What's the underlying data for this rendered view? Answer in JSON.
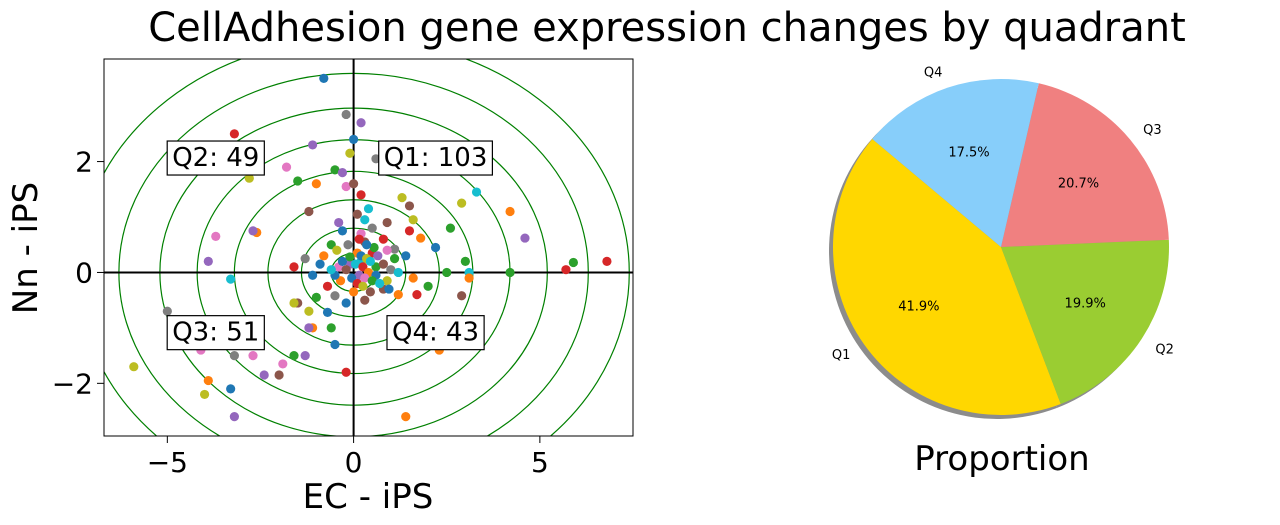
{
  "title": "CellAdhesion gene expression changes by quadrant",
  "chart_data": [
    {
      "type": "scatter",
      "xlabel": "EC - iPS",
      "ylabel": "Nn - iPS",
      "xlim": [
        -6.7,
        7.5
      ],
      "ylim": [
        -2.95,
        3.85
      ],
      "xticks": [
        -5,
        0,
        5
      ],
      "xtick_labels": [
        "−5",
        "0",
        "5"
      ],
      "yticks": [
        -2,
        0,
        2
      ],
      "ytick_labels": [
        "−2",
        "0",
        "2"
      ],
      "contour_color": "#008000",
      "contour_radii": [
        0.6,
        1.4,
        2.3,
        3.2,
        4.2,
        5.2,
        6.3,
        7.4
      ],
      "ellipse_y_scale": 0.57,
      "quadrant_labels": [
        {
          "id": "q2",
          "text": "Q2: 49",
          "x": -3.7,
          "y": 2.1
        },
        {
          "id": "q1",
          "text": "Q1: 103",
          "x": 2.2,
          "y": 2.1
        },
        {
          "id": "q3",
          "text": "Q3: 51",
          "x": -3.7,
          "y": -1.05
        },
        {
          "id": "q4",
          "text": "Q4: 43",
          "x": 2.2,
          "y": -1.05
        }
      ],
      "palette": [
        "#1f77b4",
        "#ff7f0e",
        "#2ca02c",
        "#d62728",
        "#9467bd",
        "#8c564b",
        "#e377c2",
        "#7f7f7f",
        "#bcbd22",
        "#17becf"
      ],
      "points": [
        [
          -0.8,
          3.5,
          0
        ],
        [
          -0.2,
          2.85,
          7
        ],
        [
          0.2,
          2.7,
          4
        ],
        [
          -3.2,
          2.5,
          3
        ],
        [
          0.0,
          2.4,
          0
        ],
        [
          -1.1,
          2.3,
          4
        ],
        [
          -0.1,
          2.15,
          8
        ],
        [
          0.6,
          2.05,
          7
        ],
        [
          -1.8,
          1.9,
          6
        ],
        [
          -0.5,
          1.85,
          2
        ],
        [
          -0.3,
          1.8,
          4
        ],
        [
          -2.8,
          1.7,
          8
        ],
        [
          -1.5,
          1.65,
          2
        ],
        [
          -1.0,
          1.6,
          1
        ],
        [
          -0.2,
          1.55,
          6
        ],
        [
          0.0,
          1.6,
          5
        ],
        [
          3.3,
          1.45,
          9
        ],
        [
          0.2,
          1.4,
          3
        ],
        [
          1.3,
          1.35,
          8
        ],
        [
          2.9,
          1.25,
          8
        ],
        [
          1.5,
          1.2,
          5
        ],
        [
          0.4,
          1.15,
          9
        ],
        [
          -1.2,
          1.1,
          5
        ],
        [
          0.1,
          1.05,
          5
        ],
        [
          4.2,
          1.1,
          1
        ],
        [
          1.6,
          0.95,
          8
        ],
        [
          0.9,
          0.9,
          5
        ],
        [
          0.3,
          0.95,
          9
        ],
        [
          -0.4,
          0.9,
          4
        ],
        [
          2.6,
          0.8,
          2
        ],
        [
          -0.3,
          0.75,
          0
        ],
        [
          1.5,
          0.75,
          3
        ],
        [
          -2.6,
          0.72,
          1
        ],
        [
          -2.7,
          0.75,
          4
        ],
        [
          0.5,
          0.8,
          7
        ],
        [
          0.2,
          0.7,
          6
        ],
        [
          -3.7,
          0.65,
          6
        ],
        [
          4.6,
          0.62,
          4
        ],
        [
          1.8,
          0.62,
          1
        ],
        [
          0.8,
          0.6,
          3
        ],
        [
          0.3,
          0.55,
          5
        ],
        [
          -0.6,
          0.5,
          2
        ],
        [
          2.2,
          0.45,
          0
        ],
        [
          1.1,
          0.42,
          7
        ],
        [
          0.5,
          0.35,
          3
        ],
        [
          -0.8,
          0.3,
          1
        ],
        [
          1.4,
          0.3,
          0
        ],
        [
          0.2,
          0.2,
          9
        ],
        [
          -0.1,
          0.15,
          4
        ],
        [
          0.6,
          0.1,
          2
        ],
        [
          -3.9,
          0.2,
          4
        ],
        [
          6.8,
          0.2,
          3
        ],
        [
          5.9,
          0.18,
          2
        ],
        [
          3.0,
          0.2,
          2
        ],
        [
          -0.4,
          0.1,
          6
        ],
        [
          1.0,
          0.05,
          7
        ],
        [
          5.7,
          0.05,
          3
        ],
        [
          4.2,
          0.0,
          2
        ],
        [
          3.1,
          0.0,
          9
        ],
        [
          2.5,
          0.0,
          2
        ],
        [
          -1.3,
          0.25,
          7
        ],
        [
          -1.6,
          0.1,
          3
        ],
        [
          -1.1,
          -0.05,
          0
        ],
        [
          0.9,
          -0.15,
          8
        ],
        [
          1.6,
          -0.1,
          1
        ],
        [
          3.1,
          -0.1,
          1
        ],
        [
          -3.3,
          -0.12,
          9
        ],
        [
          2.0,
          -0.25,
          2
        ],
        [
          0.8,
          -0.3,
          5
        ],
        [
          1.7,
          -0.4,
          3
        ],
        [
          2.9,
          -0.42,
          5
        ],
        [
          -0.5,
          -0.42,
          7
        ],
        [
          -1.0,
          -0.45,
          2
        ],
        [
          1.2,
          -0.4,
          1
        ],
        [
          -1.5,
          -0.55,
          5
        ],
        [
          -1.6,
          -0.55,
          8
        ],
        [
          -0.2,
          -0.55,
          0
        ],
        [
          0.3,
          -0.5,
          5
        ],
        [
          -5.0,
          -0.7,
          7
        ],
        [
          -0.7,
          -0.72,
          0
        ],
        [
          -1.2,
          -0.7,
          8
        ],
        [
          -1.1,
          -1.0,
          1
        ],
        [
          -1.2,
          -1.0,
          4
        ],
        [
          -0.6,
          -1.0,
          2
        ],
        [
          1.5,
          -0.95,
          3
        ],
        [
          2.5,
          -0.9,
          1
        ],
        [
          -0.5,
          -1.3,
          0
        ],
        [
          -1.6,
          -1.5,
          2
        ],
        [
          -1.3,
          -1.5,
          4
        ],
        [
          -3.2,
          -1.5,
          7
        ],
        [
          -2.7,
          -1.5,
          6
        ],
        [
          -4.1,
          -1.4,
          6
        ],
        [
          2.3,
          -1.4,
          1
        ],
        [
          -5.9,
          -1.7,
          8
        ],
        [
          -1.9,
          -1.65,
          6
        ],
        [
          -0.2,
          -1.8,
          3
        ],
        [
          -2.4,
          -1.85,
          4
        ],
        [
          -2.0,
          -1.85,
          5
        ],
        [
          -3.9,
          -1.95,
          1
        ],
        [
          -3.3,
          -2.1,
          0
        ],
        [
          -4.0,
          -2.2,
          8
        ],
        [
          -3.2,
          -2.6,
          4
        ],
        [
          1.4,
          -2.6,
          1
        ],
        [
          0.1,
          0.35,
          1
        ],
        [
          0.2,
          0.3,
          0
        ],
        [
          0.35,
          0.25,
          8
        ],
        [
          0.45,
          0.2,
          9
        ],
        [
          -0.1,
          0.28,
          2
        ],
        [
          -0.3,
          0.2,
          0
        ],
        [
          0.05,
          0.15,
          9
        ],
        [
          0.25,
          0.1,
          3
        ],
        [
          0.4,
          0.0,
          1
        ],
        [
          0.6,
          -0.05,
          0
        ],
        [
          -0.2,
          0.05,
          5
        ],
        [
          0.15,
          -0.05,
          4
        ],
        [
          0.3,
          -0.1,
          6
        ],
        [
          0.5,
          -0.15,
          2
        ],
        [
          -0.05,
          -0.1,
          0
        ],
        [
          0.1,
          -0.2,
          3
        ],
        [
          0.25,
          -0.25,
          8
        ],
        [
          0.7,
          -0.2,
          9
        ],
        [
          -0.35,
          -0.15,
          1
        ],
        [
          -0.5,
          -0.05,
          0
        ],
        [
          -0.6,
          0.05,
          9
        ],
        [
          0.8,
          0.15,
          5
        ],
        [
          0.65,
          0.3,
          4
        ],
        [
          0.55,
          0.45,
          2
        ],
        [
          0.35,
          0.5,
          0
        ],
        [
          -0.15,
          0.5,
          7
        ],
        [
          -0.45,
          0.4,
          8
        ],
        [
          0.9,
          0.4,
          6
        ],
        [
          1.1,
          0.25,
          2
        ],
        [
          1.2,
          0.0,
          9
        ],
        [
          -0.7,
          -0.25,
          3
        ],
        [
          -0.9,
          0.15,
          0
        ],
        [
          0.0,
          -0.35,
          1
        ],
        [
          0.45,
          -0.35,
          5
        ],
        [
          0.95,
          -0.3,
          0
        ],
        [
          0.15,
          0.6,
          3
        ]
      ]
    },
    {
      "type": "pie",
      "xlabel": "Proportion",
      "shadow": true,
      "slices": [
        {
          "label": "Q1",
          "value": 41.9,
          "pct_label": "41.9%",
          "color": "#ffd700"
        },
        {
          "label": "Q2",
          "value": 19.9,
          "pct_label": "19.9%",
          "color": "#9acd32"
        },
        {
          "label": "Q3",
          "value": 20.7,
          "pct_label": "20.7%",
          "color": "#f08080"
        },
        {
          "label": "Q4",
          "value": 17.5,
          "pct_label": "17.5%",
          "color": "#87cefa"
        }
      ],
      "start_angle_deg": 140,
      "direction": "counterclockwise"
    }
  ]
}
